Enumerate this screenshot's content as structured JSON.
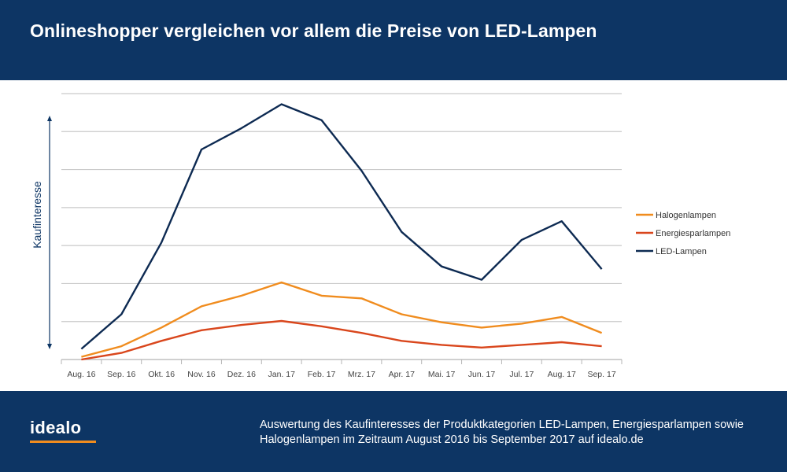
{
  "header": {
    "title": "Onlineshopper vergleichen vor allem die Preise von LED-Lampen"
  },
  "footer": {
    "logo": "idealo",
    "description": "Auswertung des Kaufinteresses der Produktkategorien LED-Lampen, Energiesparlampen sowie Halogenlampen im Zeitraum August 2016 bis September 2017 auf idealo.de"
  },
  "colors": {
    "header_bg": "#0d3564",
    "halogen": "#f08c1e",
    "energie": "#d9461c",
    "led": "#0d2a52",
    "logo_accent": "#f08c1e"
  },
  "chart_data": {
    "type": "line",
    "ylabel": "Kaufinteresse",
    "xlabel": "",
    "ylim": [
      0,
      100
    ],
    "grid": true,
    "legend_position": "right",
    "categories": [
      "Aug. 16",
      "Sep. 16",
      "Okt. 16",
      "Nov. 16",
      "Dez. 16",
      "Jan. 17",
      "Feb. 17",
      "Mrz. 17",
      "Apr. 17",
      "Mai. 17",
      "Jun. 17",
      "Jul. 17",
      "Aug. 17",
      "Sep. 17"
    ],
    "series": [
      {
        "name": "Halogenlampen",
        "color": "#f08c1e",
        "values": [
          1,
          5,
          12,
          20,
          24,
          29,
          24,
          23,
          17,
          14,
          12,
          13.5,
          16,
          10
        ]
      },
      {
        "name": "Energiesparlampen",
        "color": "#d9461c",
        "values": [
          0,
          2.5,
          7,
          11,
          13,
          14.5,
          12.5,
          10,
          7,
          5.5,
          4.5,
          5.5,
          6.5,
          5
        ]
      },
      {
        "name": "LED-Lampen",
        "color": "#0d2a52",
        "values": [
          4,
          17,
          44,
          79,
          87,
          96,
          90,
          71,
          48,
          35,
          30,
          45,
          52,
          34
        ]
      }
    ]
  }
}
